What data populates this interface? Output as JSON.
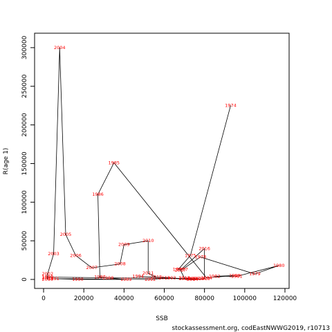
{
  "chart_data": {
    "type": "line",
    "xlabel": "SSB",
    "ylabel": "R(age 1)",
    "footnote": "stockassessment.org, codEastNWWG2019, r10713",
    "labels": [
      "1974",
      "1975",
      "1976",
      "1977",
      "1978",
      "1979",
      "1980",
      "1981",
      "1982",
      "1983",
      "1984",
      "1985",
      "1986",
      "1987",
      "1988",
      "1989",
      "1990",
      "1991",
      "1992",
      "1993",
      "1994",
      "1995",
      "1996",
      "1997",
      "1998",
      "1999",
      "2000",
      "2001",
      "2002",
      "2003",
      "2004",
      "2005",
      "2006",
      "2007",
      "2008",
      "2009",
      "2010",
      "2011",
      "2012",
      "2013",
      "2014",
      "2015",
      "2016",
      "2017",
      "2018"
    ],
    "x": [
      93000,
      73000,
      67000,
      69000,
      78000,
      105000,
      117000,
      96000,
      85000,
      95000,
      81000,
      35000,
      27000,
      28000,
      32000,
      41000,
      17000,
      5000,
      53000,
      63000,
      47000,
      70000,
      73000,
      75000,
      77000,
      2000,
      2000,
      2000,
      2000,
      5000,
      8000,
      11000,
      16000,
      24000,
      38000,
      40000,
      52000,
      52000,
      56000,
      60000,
      74000,
      80000,
      80000,
      68000,
      70000
    ],
    "values": [
      225000,
      31000,
      13000,
      13000,
      29000,
      7000,
      18000,
      4000,
      4000,
      5000,
      2000,
      151000,
      110000,
      3000,
      2000,
      0,
      0,
      1000,
      0,
      2000,
      4000,
      1000,
      1000,
      1000,
      1000,
      3000,
      0,
      2000,
      7000,
      33000,
      300000,
      58000,
      31000,
      15000,
      20000,
      45000,
      50000,
      8000,
      3000,
      2000,
      0,
      1000,
      40000,
      12000,
      2000
    ],
    "color": "#ff0000",
    "line_color": "#000000",
    "xlim": [
      -4470,
      122070
    ],
    "ylim": [
      -11640,
      318700
    ],
    "xticks": [
      0,
      20000,
      40000,
      60000,
      80000,
      100000,
      120000
    ],
    "yticks": [
      0,
      50000,
      100000,
      150000,
      200000,
      250000,
      300000
    ]
  }
}
